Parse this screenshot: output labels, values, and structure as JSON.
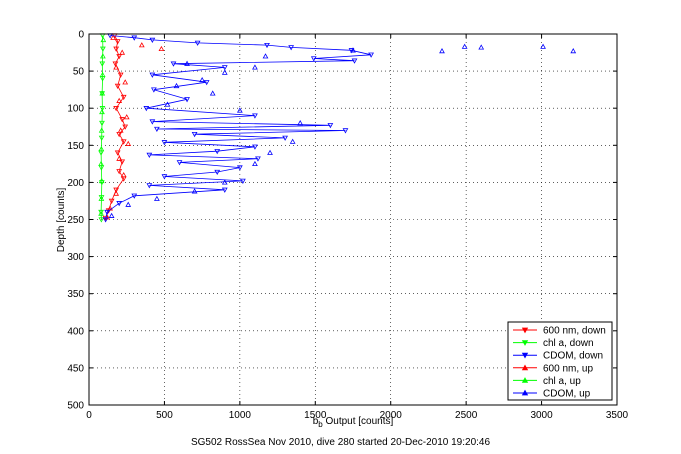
{
  "chart_data": {
    "type": "scatter",
    "caption": "SG502 RossSea Nov 2010, dive 280 started 20-Dec-2010 19:20:46",
    "xlabel_main": "b",
    "xlabel_sub": "b",
    "xlabel_rest": " Output [counts]",
    "ylabel": "Depth [counts]",
    "xlim": [
      0,
      3500
    ],
    "ylim": [
      0,
      500
    ],
    "y_reversed": true,
    "grid": true,
    "legend_placement": "bottom-right",
    "xticks": [
      "0",
      "500",
      "1000",
      "1500",
      "2000",
      "2500",
      "3000",
      "3500"
    ],
    "yticks": [
      "0",
      "50",
      "100",
      "150",
      "200",
      "250",
      "300",
      "350",
      "400",
      "450",
      "500"
    ],
    "series": [
      {
        "name": "600 nm, down",
        "color": "#ff0000",
        "marker": "tri-down",
        "line": true,
        "points": [
          [
            170,
            2
          ],
          [
            190,
            10
          ],
          [
            180,
            20
          ],
          [
            200,
            30
          ],
          [
            175,
            40
          ],
          [
            210,
            55
          ],
          [
            190,
            70
          ],
          [
            230,
            85
          ],
          [
            180,
            100
          ],
          [
            220,
            115
          ],
          [
            240,
            125
          ],
          [
            200,
            135
          ],
          [
            230,
            145
          ],
          [
            190,
            160
          ],
          [
            220,
            172
          ],
          [
            200,
            185
          ],
          [
            230,
            195
          ],
          [
            180,
            210
          ],
          [
            150,
            225
          ],
          [
            130,
            238
          ],
          [
            110,
            248
          ]
        ]
      },
      {
        "name": "chl a, down",
        "color": "#00ff00",
        "marker": "tri-down",
        "line": true,
        "points": [
          [
            90,
            2
          ],
          [
            92,
            20
          ],
          [
            88,
            40
          ],
          [
            90,
            60
          ],
          [
            87,
            80
          ],
          [
            89,
            100
          ],
          [
            86,
            120
          ],
          [
            84,
            140
          ],
          [
            80,
            160
          ],
          [
            82,
            180
          ],
          [
            85,
            200
          ],
          [
            83,
            220
          ],
          [
            80,
            240
          ],
          [
            82,
            250
          ]
        ]
      },
      {
        "name": "CDOM, down",
        "color": "#0000ff",
        "marker": "tri-down",
        "line": true,
        "points": [
          [
            140,
            2
          ],
          [
            300,
            5
          ],
          [
            420,
            8
          ],
          [
            720,
            12
          ],
          [
            1180,
            15
          ],
          [
            1340,
            18
          ],
          [
            1740,
            22
          ],
          [
            1870,
            28
          ],
          [
            1490,
            33
          ],
          [
            1760,
            36
          ],
          [
            560,
            40
          ],
          [
            900,
            45
          ],
          [
            420,
            55
          ],
          [
            780,
            65
          ],
          [
            430,
            75
          ],
          [
            650,
            88
          ],
          [
            380,
            100
          ],
          [
            1100,
            110
          ],
          [
            420,
            118
          ],
          [
            1600,
            123
          ],
          [
            450,
            128
          ],
          [
            1700,
            130
          ],
          [
            700,
            135
          ],
          [
            1300,
            140
          ],
          [
            500,
            146
          ],
          [
            1100,
            152
          ],
          [
            850,
            158
          ],
          [
            400,
            163
          ],
          [
            1120,
            168
          ],
          [
            600,
            173
          ],
          [
            1000,
            180
          ],
          [
            850,
            186
          ],
          [
            500,
            192
          ],
          [
            1020,
            198
          ],
          [
            400,
            204
          ],
          [
            900,
            210
          ],
          [
            300,
            218
          ],
          [
            200,
            228
          ],
          [
            120,
            240
          ],
          [
            110,
            250
          ]
        ]
      },
      {
        "name": "600 nm, up",
        "color": "#ff0000",
        "marker": "tri-up",
        "line": false,
        "points": [
          [
            160,
            5
          ],
          [
            350,
            15
          ],
          [
            220,
            25
          ],
          [
            480,
            20
          ],
          [
            180,
            45
          ],
          [
            240,
            65
          ],
          [
            200,
            90
          ],
          [
            250,
            112
          ],
          [
            210,
            130
          ],
          [
            260,
            148
          ],
          [
            200,
            168
          ],
          [
            230,
            190
          ],
          [
            180,
            215
          ],
          [
            140,
            235
          ],
          [
            120,
            247
          ]
        ]
      },
      {
        "name": "chl a, up",
        "color": "#00ff00",
        "marker": "tri-up",
        "line": false,
        "points": [
          [
            95,
            8
          ],
          [
            92,
            30
          ],
          [
            90,
            55
          ],
          [
            88,
            80
          ],
          [
            86,
            105
          ],
          [
            84,
            130
          ],
          [
            82,
            155
          ],
          [
            80,
            175
          ],
          [
            84,
            198
          ],
          [
            82,
            222
          ],
          [
            80,
            242
          ]
        ]
      },
      {
        "name": "CDOM, up",
        "color": "#0000ff",
        "marker": "tri-up",
        "line": false,
        "points": [
          [
            2490,
            17
          ],
          [
            2600,
            18
          ],
          [
            3010,
            17
          ],
          [
            3210,
            23
          ],
          [
            2340,
            23
          ],
          [
            1750,
            22
          ],
          [
            1170,
            30
          ],
          [
            650,
            40
          ],
          [
            1100,
            45
          ],
          [
            900,
            52
          ],
          [
            750,
            62
          ],
          [
            580,
            70
          ],
          [
            820,
            80
          ],
          [
            520,
            95
          ],
          [
            1000,
            103
          ],
          [
            1400,
            120
          ],
          [
            1350,
            145
          ],
          [
            1200,
            160
          ],
          [
            1100,
            175
          ],
          [
            900,
            200
          ],
          [
            700,
            212
          ],
          [
            450,
            222
          ],
          [
            260,
            230
          ],
          [
            150,
            245
          ]
        ]
      }
    ]
  }
}
